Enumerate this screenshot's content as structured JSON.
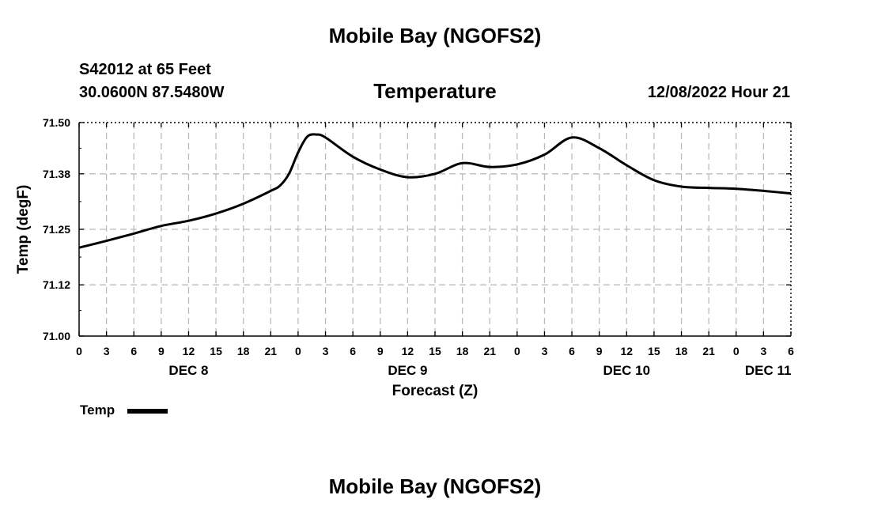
{
  "page": {
    "title": "Mobile Bay (NGOFS2)",
    "footer_title": "Mobile Bay (NGOFS2)",
    "station": "S42012 at 65 Feet",
    "coords": "30.0600N  87.5480W",
    "run_time": "12/08/2022 Hour 21"
  },
  "chart_data": {
    "type": "line",
    "title": "Temperature",
    "xlabel": "Forecast (Z)",
    "ylabel": "Temp (degF)",
    "ylim": [
      71.0,
      71.5
    ],
    "yticks": [
      "71.00",
      "71.12",
      "71.25",
      "71.38",
      "71.50"
    ],
    "xlim": [
      0,
      78
    ],
    "xticks": [
      "0",
      "3",
      "6",
      "9",
      "12",
      "15",
      "18",
      "21",
      "0",
      "3",
      "6",
      "9",
      "12",
      "15",
      "18",
      "21",
      "0",
      "3",
      "6",
      "9",
      "12",
      "15",
      "18",
      "21",
      "0",
      "3",
      "6"
    ],
    "day_labels": [
      {
        "x": 12,
        "label": "DEC 8"
      },
      {
        "x": 36,
        "label": "DEC 9"
      },
      {
        "x": 60,
        "label": "DEC 10"
      },
      {
        "x": 75.5,
        "label": "DEC 11"
      }
    ],
    "grid": true,
    "legend": {
      "label": "Temp",
      "position": "bottom-left"
    },
    "series": [
      {
        "name": "Temp",
        "x": [
          0,
          3,
          6,
          9,
          12,
          15,
          18,
          21,
          22,
          23,
          24,
          25,
          26,
          27,
          30,
          33,
          36,
          39,
          42,
          45,
          48,
          51,
          54,
          57,
          60,
          63,
          66,
          69,
          72,
          75,
          78
        ],
        "y": [
          71.207,
          71.223,
          71.24,
          71.258,
          71.27,
          71.287,
          71.31,
          71.34,
          71.352,
          71.38,
          71.43,
          71.467,
          71.472,
          71.465,
          71.42,
          71.39,
          71.372,
          71.38,
          71.405,
          71.396,
          71.402,
          71.425,
          71.465,
          71.44,
          71.4,
          71.365,
          71.35,
          71.347,
          71.345,
          71.34,
          71.334
        ]
      }
    ]
  }
}
